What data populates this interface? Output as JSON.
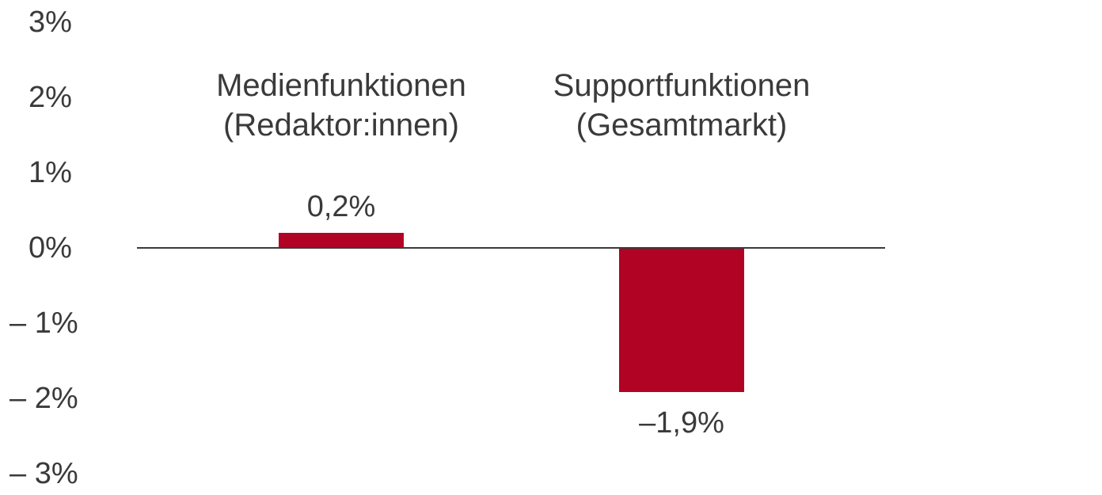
{
  "chart_data": {
    "type": "bar",
    "title": "",
    "xlabel": "",
    "ylabel": "",
    "ylim": [
      -3,
      3
    ],
    "grid": false,
    "legend": false,
    "bar_color": "#b10323",
    "axis_line_color": "#3a3a3a",
    "text_color": "#3a3a3a",
    "categories": [
      {
        "line1": "Medienfunktionen",
        "line2": "(Redaktor:innen)"
      },
      {
        "line1": "Supportfunktionen",
        "line2": "(Gesamtmarkt)"
      }
    ],
    "values": [
      0.2,
      -1.9
    ],
    "value_labels": [
      "0,2%",
      "–1,9%"
    ],
    "yticks": [
      {
        "value": 3,
        "label": "3%"
      },
      {
        "value": 2,
        "label": "2%"
      },
      {
        "value": 1,
        "label": "1%"
      },
      {
        "value": 0,
        "label": "0%"
      },
      {
        "value": -1,
        "label": "– 1%"
      },
      {
        "value": -2,
        "label": "– 2%"
      },
      {
        "value": -3,
        "label": "– 3%"
      }
    ]
  }
}
